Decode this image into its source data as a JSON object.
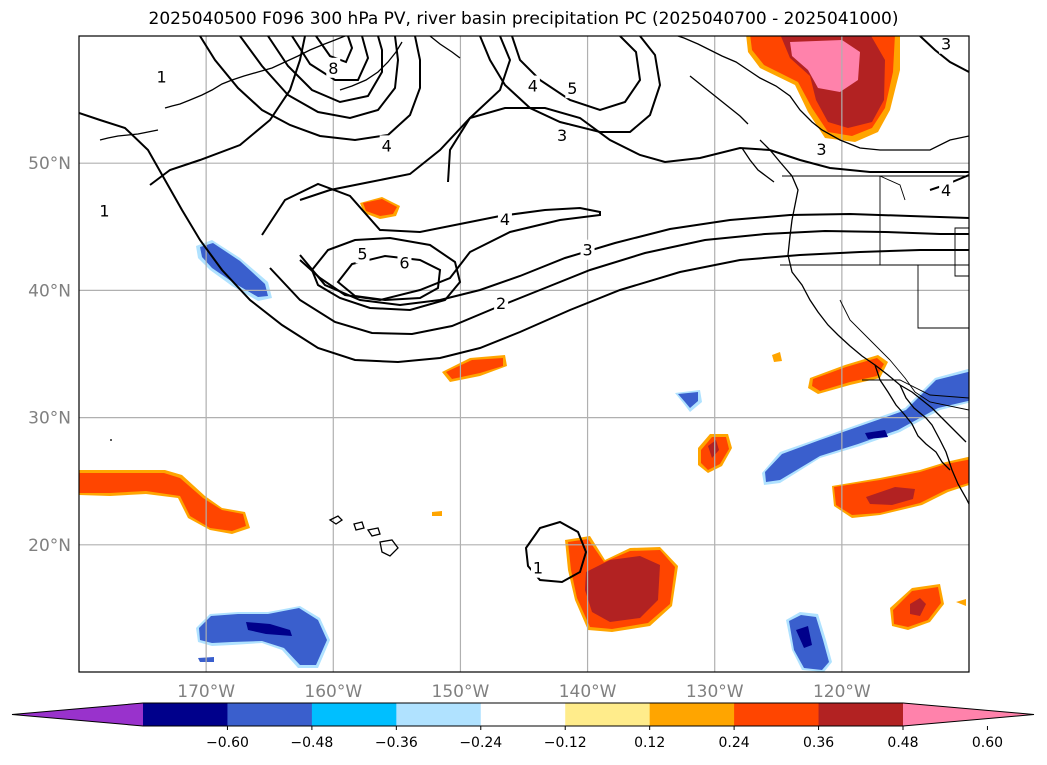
{
  "title": "2025040500 F096 300 hPa PV, river basin precipitation PC (2025040700 - 2025041000)",
  "map": {
    "lon_range": [
      -180,
      -110
    ],
    "lat_range": [
      10,
      60
    ],
    "lat_ticks": [
      {
        "value": 50,
        "label": "50°N"
      },
      {
        "value": 40,
        "label": "40°N"
      },
      {
        "value": 30,
        "label": "30°N"
      },
      {
        "value": 20,
        "label": "20°N"
      }
    ],
    "lon_ticks": [
      {
        "value": -170,
        "label": "170°W"
      },
      {
        "value": -160,
        "label": "160°W"
      },
      {
        "value": -150,
        "label": "150°W"
      },
      {
        "value": -140,
        "label": "140°W"
      },
      {
        "value": -130,
        "label": "130°W"
      },
      {
        "value": -120,
        "label": "120°W"
      }
    ],
    "grid": true
  },
  "pv_contour_labels": [
    {
      "text": "1",
      "lon": -178.0,
      "lat": 46.3
    },
    {
      "text": "1",
      "lon": -173.5,
      "lat": 56.8
    },
    {
      "text": "8",
      "lon": -160.0,
      "lat": 57.5
    },
    {
      "text": "4",
      "lon": -155.8,
      "lat": 51.4
    },
    {
      "text": "4",
      "lon": -146.5,
      "lat": 45.6
    },
    {
      "text": "5",
      "lon": -157.7,
      "lat": 42.9
    },
    {
      "text": "6",
      "lon": -154.4,
      "lat": 42.2
    },
    {
      "text": "3",
      "lon": -140.0,
      "lat": 43.2
    },
    {
      "text": "2",
      "lon": -146.8,
      "lat": 39.0
    },
    {
      "text": "4",
      "lon": -144.3,
      "lat": 56.1
    },
    {
      "text": "5",
      "lon": -141.2,
      "lat": 55.9
    },
    {
      "text": "3",
      "lon": -142.0,
      "lat": 52.2
    },
    {
      "text": "3",
      "lon": -121.6,
      "lat": 51.1
    },
    {
      "text": "3",
      "lon": -111.8,
      "lat": 59.4
    },
    {
      "text": "4",
      "lon": -111.8,
      "lat": 47.9
    },
    {
      "text": "1",
      "lon": -143.9,
      "lat": 18.2
    }
  ],
  "colorbar": {
    "labels": [
      "−0.60",
      "−0.48",
      "−0.36",
      "−0.24",
      "−0.12",
      "0.12",
      "0.24",
      "0.36",
      "0.48",
      "0.60"
    ],
    "colors": [
      "#9932cc",
      "#00008b",
      "#3a5fcd",
      "#00bfff",
      "#b0e2ff",
      "#ffffff",
      "#ffec8b",
      "#ffa500",
      "#ff4500",
      "#b22222",
      "#ff82ab"
    ]
  },
  "precip_colors": {
    "neg_1": "#b0e2ff",
    "neg_2": "#00bfff",
    "neg_3": "#3a5fcd",
    "neg_4": "#00008b",
    "pos_1": "#ffec8b",
    "pos_2": "#ffa500",
    "pos_3": "#ff4500",
    "pos_4": "#b22222",
    "pos_5": "#ff82ab"
  }
}
